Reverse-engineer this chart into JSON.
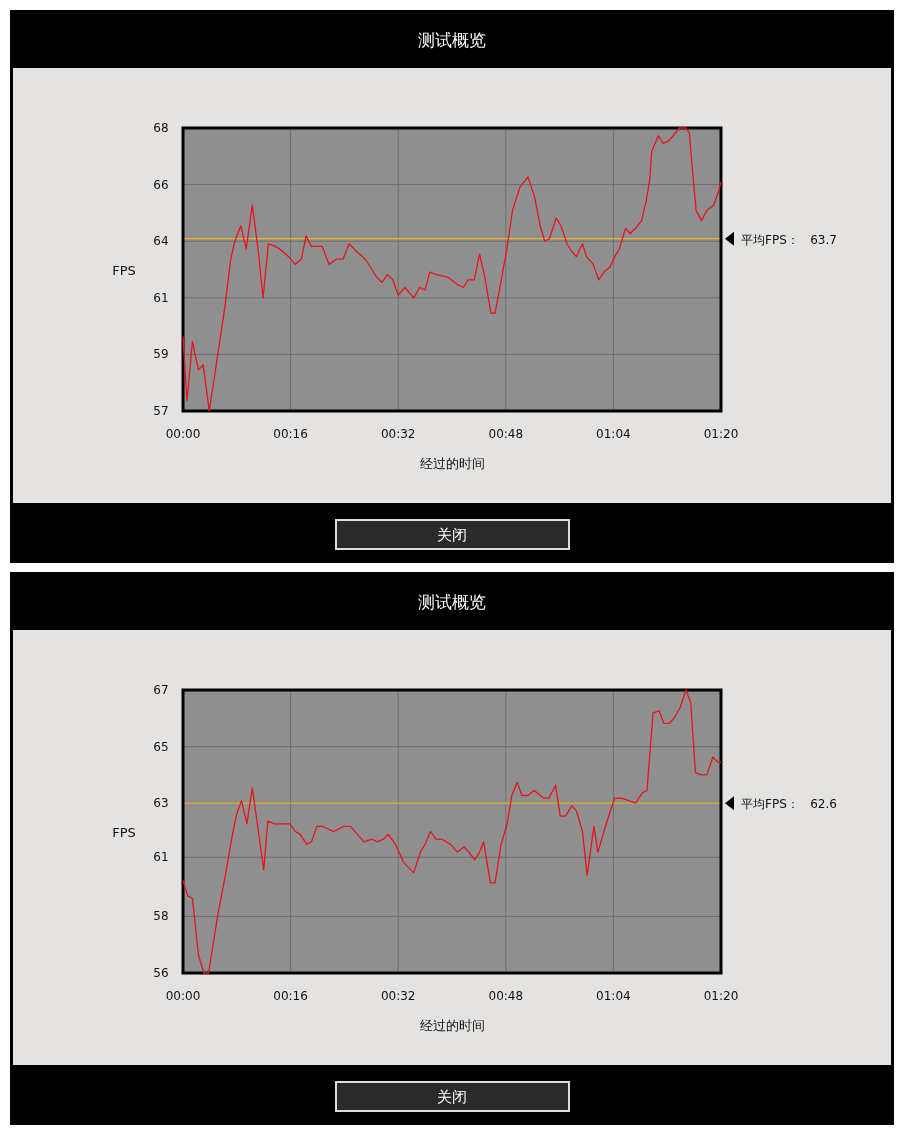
{
  "chart_data": [
    {
      "type": "line",
      "title": "测试概览",
      "xlabel": "经过的时间",
      "ylabel": "FPS",
      "color": "#e8141c",
      "grid": true,
      "xlim": [
        0,
        80
      ],
      "ylim": [
        57,
        68
      ],
      "xticks": [
        {
          "value": 0,
          "label": "00:00"
        },
        {
          "value": 16,
          "label": "00:16"
        },
        {
          "value": 32,
          "label": "00:32"
        },
        {
          "value": 48,
          "label": "00:48"
        },
        {
          "value": 64,
          "label": "01:04"
        },
        {
          "value": 80,
          "label": "01:20"
        }
      ],
      "yticks": [
        57,
        {
          "value": 59.2,
          "label": "59"
        },
        {
          "value": 61.4,
          "label": "61"
        },
        {
          "value": 63.6,
          "label": "64"
        },
        {
          "value": 65.8,
          "label": "66"
        },
        68
      ],
      "ref_lines": [
        {
          "axis": "y",
          "value": 63.7,
          "label": "平均FPS：   63.7",
          "color": "#f0b030"
        }
      ],
      "annotations": [
        "关闭"
      ],
      "x": [
        0,
        0.3,
        0.6,
        1.4,
        2.3,
        3.0,
        3.9,
        5.0,
        6.2,
        7.1,
        7.7,
        8.6,
        9.4,
        10.3,
        11.2,
        11.9,
        12.7,
        13.7,
        14.4,
        15.7,
        16.7,
        17.6,
        18.3,
        19.1,
        20.7,
        21.7,
        22.8,
        23.8,
        24.7,
        25.8,
        27.1,
        28.1,
        28.8,
        29.6,
        30.4,
        31.2,
        32.0,
        33.0,
        34.3,
        35.2,
        36.0,
        36.7,
        37.7,
        39.4,
        40.9,
        41.7,
        42.4,
        43.3,
        44.1,
        44.8,
        45.8,
        46.4,
        47.4,
        48.1,
        49.0,
        50.1,
        51.3,
        52.3,
        53.1,
        53.8,
        54.5,
        55.5,
        56.2,
        57.1,
        57.8,
        58.5,
        59.4,
        60.0,
        61.0,
        61.8,
        62.6,
        63.5,
        64.2,
        64.9,
        65.8,
        66.5,
        67.3,
        68.2,
        68.9,
        69.4,
        69.7,
        70.7,
        71.4,
        72.2,
        72.9,
        73.8,
        74.8,
        75.3,
        75.6,
        76.3,
        77.1,
        77.9,
        78.9,
        79.6,
        80
      ],
      "values": [
        59.9,
        58.6,
        57.4,
        59.7,
        58.6,
        58.8,
        57.0,
        58.9,
        61.0,
        62.9,
        63.6,
        64.2,
        63.3,
        65.0,
        63.2,
        61.4,
        63.5,
        63.4,
        63.3,
        63.0,
        62.7,
        62.9,
        63.8,
        63.4,
        63.4,
        62.7,
        62.9,
        62.9,
        63.5,
        63.2,
        62.9,
        62.5,
        62.2,
        62.0,
        62.3,
        62.1,
        61.5,
        61.8,
        61.4,
        61.8,
        61.7,
        62.4,
        62.3,
        62.2,
        61.9,
        61.8,
        62.1,
        62.1,
        63.1,
        62.3,
        60.8,
        60.8,
        62.2,
        63.2,
        64.8,
        65.7,
        66.1,
        65.3,
        64.2,
        63.6,
        63.7,
        64.5,
        64.2,
        63.5,
        63.2,
        63.0,
        63.5,
        63.0,
        62.7,
        62.1,
        62.4,
        62.6,
        63.0,
        63.3,
        64.1,
        63.9,
        64.1,
        64.4,
        65.2,
        66.0,
        67.1,
        67.7,
        67.4,
        67.5,
        67.7,
        68.0,
        68.0,
        67.8,
        66.8,
        64.8,
        64.4,
        64.8,
        65.0,
        65.5,
        65.9
      ]
    },
    {
      "type": "line",
      "title": "测试概览",
      "xlabel": "经过的时间",
      "ylabel": "FPS",
      "color": "#e8141c",
      "grid": true,
      "xlim": [
        0,
        80
      ],
      "ylim": [
        56,
        67
      ],
      "xticks": [
        {
          "value": 0,
          "label": "00:00"
        },
        {
          "value": 16,
          "label": "00:16"
        },
        {
          "value": 32,
          "label": "00:32"
        },
        {
          "value": 48,
          "label": "00:48"
        },
        {
          "value": 64,
          "label": "01:04"
        },
        {
          "value": 80,
          "label": "01:20"
        }
      ],
      "yticks": [
        56,
        {
          "value": 58.2,
          "label": "58"
        },
        {
          "value": 60.5,
          "label": "61"
        },
        {
          "value": 62.6,
          "label": "63"
        },
        {
          "value": 64.8,
          "label": "65"
        },
        67
      ],
      "ref_lines": [
        {
          "axis": "y",
          "value": 62.6,
          "label": "平均FPS：   62.6",
          "color": "#f0b030"
        }
      ],
      "annotations": [
        "关闭"
      ],
      "x": [
        0,
        0.7,
        1.4,
        2.3,
        3.1,
        3.8,
        5.2,
        6.3,
        7.3,
        8.0,
        8.7,
        9.5,
        10.3,
        11.0,
        12.0,
        12.6,
        13.6,
        15.0,
        15.9,
        16.7,
        17.4,
        18.4,
        19.1,
        19.9,
        20.7,
        22.4,
        23.9,
        24.9,
        25.9,
        26.9,
        28.1,
        28.9,
        29.8,
        30.5,
        31.6,
        32.8,
        34.3,
        35.3,
        36.0,
        36.8,
        37.6,
        38.5,
        39.8,
        40.8,
        41.8,
        42.5,
        43.4,
        44.1,
        44.7,
        45.7,
        46.4,
        47.3,
        48.2,
        48.9,
        49.7,
        50.4,
        51.3,
        52.2,
        53.6,
        54.4,
        55.4,
        56.1,
        56.9,
        57.8,
        58.5,
        59.4,
        60.1,
        61.1,
        61.7,
        62.6,
        63.3,
        64.2,
        65.2,
        66.3,
        67.3,
        68.3,
        69.0,
        69.5,
        69.9,
        70.8,
        71.5,
        72.3,
        73.0,
        73.9,
        74.8,
        75.5,
        76.2,
        77.0,
        77.9,
        78.8,
        79.5,
        80
      ],
      "values": [
        59.6,
        59.0,
        58.9,
        56.7,
        56.0,
        56.0,
        58.3,
        59.8,
        61.3,
        62.2,
        62.7,
        61.8,
        63.2,
        61.9,
        60.0,
        61.9,
        61.8,
        61.8,
        61.8,
        61.5,
        61.4,
        61.0,
        61.1,
        61.7,
        61.7,
        61.5,
        61.7,
        61.7,
        61.4,
        61.1,
        61.2,
        61.1,
        61.2,
        61.4,
        61.0,
        60.3,
        59.9,
        60.7,
        61.0,
        61.5,
        61.2,
        61.2,
        61.0,
        60.7,
        60.9,
        60.7,
        60.4,
        60.7,
        61.1,
        59.5,
        59.5,
        61.0,
        61.8,
        62.9,
        63.4,
        62.9,
        62.9,
        63.1,
        62.8,
        62.8,
        63.3,
        62.1,
        62.1,
        62.5,
        62.3,
        61.5,
        59.8,
        61.7,
        60.7,
        61.5,
        62.1,
        62.8,
        62.8,
        62.7,
        62.6,
        63.0,
        63.1,
        64.8,
        66.1,
        66.2,
        65.7,
        65.7,
        65.9,
        66.3,
        67.0,
        66.5,
        63.8,
        63.7,
        63.7,
        64.4,
        64.2,
        64.2
      ]
    }
  ]
}
